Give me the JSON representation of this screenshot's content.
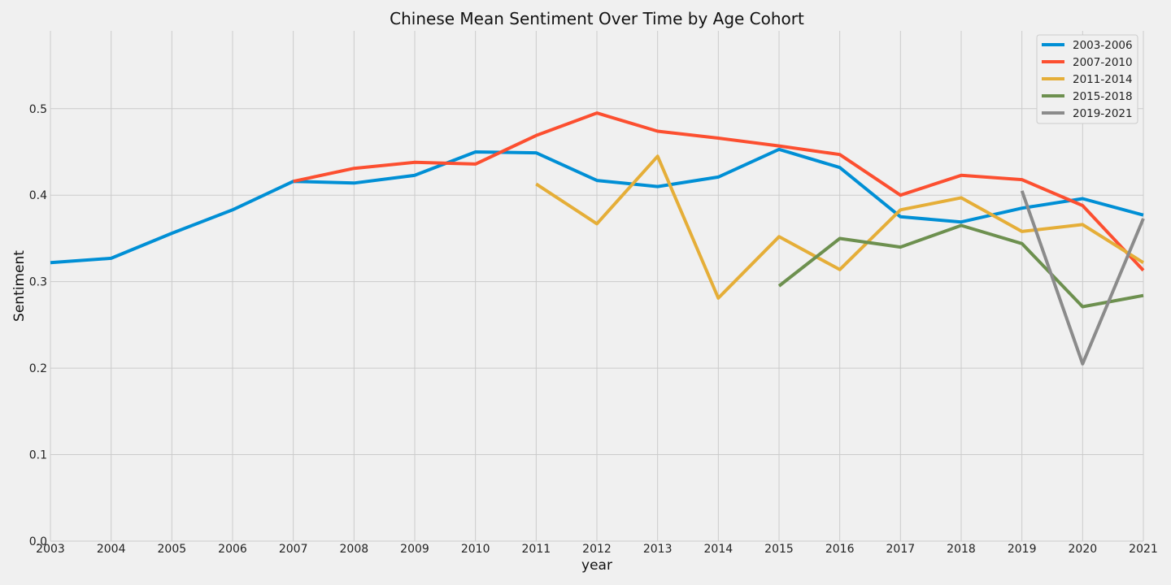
{
  "chart_data": {
    "type": "line",
    "title": "Chinese Mean Sentiment Over Time by Age Cohort",
    "xlabel": "year",
    "ylabel": "Sentiment",
    "xlim": [
      2003,
      2021
    ],
    "ylim": [
      0.0,
      0.59
    ],
    "x_ticks": [
      "2003",
      "2004",
      "2005",
      "2006",
      "2007",
      "2008",
      "2009",
      "2010",
      "2011",
      "2012",
      "2013",
      "2014",
      "2015",
      "2016",
      "2017",
      "2018",
      "2019",
      "2020",
      "2021"
    ],
    "y_ticks": [
      "0.0",
      "0.1",
      "0.2",
      "0.3",
      "0.4",
      "0.5"
    ],
    "grid": true,
    "legend_position": "top-right",
    "series": [
      {
        "name": "2003-2006",
        "color": "#008fd5",
        "x": [
          2003,
          2004,
          2005,
          2006,
          2007,
          2008,
          2009,
          2010,
          2011,
          2012,
          2013,
          2014,
          2015,
          2016,
          2017,
          2018,
          2019,
          2020,
          2021
        ],
        "y": [
          0.322,
          0.327,
          0.356,
          0.383,
          0.416,
          0.414,
          0.423,
          0.45,
          0.449,
          0.417,
          0.41,
          0.421,
          0.453,
          0.432,
          0.375,
          0.369,
          0.385,
          0.396,
          0.377
        ]
      },
      {
        "name": "2007-2010",
        "color": "#fc4f30",
        "x": [
          2007,
          2008,
          2009,
          2010,
          2011,
          2012,
          2013,
          2014,
          2015,
          2016,
          2017,
          2018,
          2019,
          2020,
          2021
        ],
        "y": [
          0.416,
          0.431,
          0.438,
          0.436,
          0.469,
          0.495,
          0.474,
          0.466,
          0.457,
          0.447,
          0.4,
          0.423,
          0.418,
          0.388,
          0.313
        ]
      },
      {
        "name": "2011-2014",
        "color": "#e5ae38",
        "x": [
          2011,
          2012,
          2013,
          2014,
          2015,
          2016,
          2017,
          2018,
          2019,
          2020,
          2021
        ],
        "y": [
          0.413,
          0.367,
          0.445,
          0.281,
          0.352,
          0.314,
          0.383,
          0.397,
          0.358,
          0.366,
          0.322
        ]
      },
      {
        "name": "2015-2018",
        "color": "#6d904f",
        "x": [
          2015,
          2016,
          2017,
          2018,
          2019,
          2020,
          2021
        ],
        "y": [
          0.295,
          0.35,
          0.34,
          0.365,
          0.344,
          0.271,
          0.284
        ]
      },
      {
        "name": "2019-2021",
        "color": "#8b8b8b",
        "x": [
          2019,
          2020,
          2021
        ],
        "y": [
          0.405,
          0.205,
          0.373
        ]
      }
    ]
  }
}
